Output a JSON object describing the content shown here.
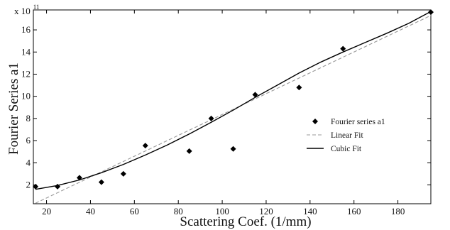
{
  "chart_data": {
    "type": "scatter",
    "xlabel": "Scattering Coef. (1/mm)",
    "ylabel": "Fourier Series a1",
    "y_multiplier": {
      "base": "x 10",
      "exponent": "11"
    },
    "xlim": [
      14,
      195
    ],
    "ylim": [
      0.3,
      17.8
    ],
    "x_ticks": [
      20,
      40,
      60,
      80,
      100,
      120,
      140,
      160,
      180
    ],
    "y_ticks": [
      2,
      4,
      6,
      8,
      10,
      12,
      14,
      16
    ],
    "grid": false,
    "legend_position": "center-right",
    "series": [
      {
        "name": "Fourier series a1",
        "kind": "markers",
        "marker": "diamond",
        "color": "#000000",
        "x": [
          15,
          25,
          35,
          45,
          55,
          65,
          85,
          95,
          105,
          115,
          135,
          155,
          195
        ],
        "y": [
          1.85,
          1.85,
          2.65,
          2.25,
          3.0,
          5.55,
          5.05,
          8.0,
          5.25,
          10.15,
          10.8,
          14.3,
          17.6
        ]
      },
      {
        "name": "Linear Fit",
        "kind": "line",
        "style": "dashed",
        "color": "#999999",
        "x": [
          15,
          195
        ],
        "y": [
          0.35,
          17.3
        ]
      },
      {
        "name": "Cubic Fit",
        "kind": "line",
        "style": "solid",
        "color": "#000000",
        "x": [
          15,
          25,
          35,
          45,
          55,
          65,
          75,
          85,
          95,
          105,
          115,
          125,
          135,
          145,
          155,
          165,
          175,
          185,
          195
        ],
        "y": [
          1.6,
          1.95,
          2.45,
          3.1,
          3.85,
          4.7,
          5.6,
          6.6,
          7.65,
          8.75,
          9.9,
          11.0,
          12.1,
          13.1,
          14.0,
          14.85,
          15.7,
          16.6,
          17.65
        ]
      }
    ]
  }
}
